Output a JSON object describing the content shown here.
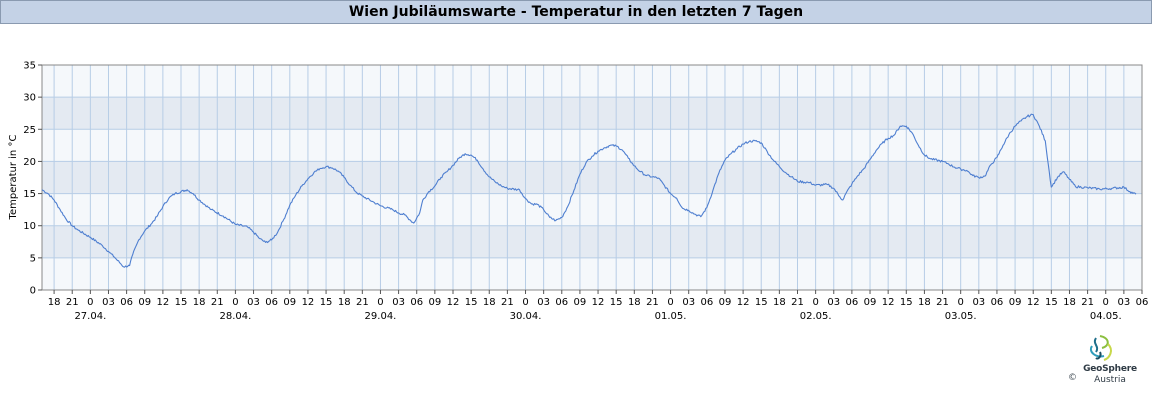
{
  "title": "Wien Jubiläumswarte - Temperatur in den letzten 7 Tagen",
  "colors": {
    "band_dark": "#e4eaf2",
    "band_light": "#f5f8fb",
    "grid": "#b7cde6",
    "line": "#4f7fd0",
    "title_bg": "#c4d2e6"
  },
  "logo": {
    "name": "GeoSphere",
    "sub": "Austria",
    "copyright": "©",
    "icon": "geosphere-logo-icon"
  },
  "chart_data": {
    "type": "line",
    "title": "Wien Jubiläumswarte - Temperatur in den letzten 7 Tagen",
    "xlabel": "",
    "ylabel": "Temperatur in °C",
    "ylim": [
      0,
      35
    ],
    "yticks": [
      0,
      5,
      10,
      15,
      20,
      25,
      30,
      35
    ],
    "xlim": [
      "2024-04-26 16:00",
      "2024-05-04 06:00"
    ],
    "x_unit": "date-time (hours)",
    "hour_tick_labels": [
      "18",
      "21",
      "0",
      "03",
      "06",
      "09",
      "12",
      "15",
      "18",
      "21",
      "0",
      "03",
      "06",
      "09",
      "12",
      "15",
      "18",
      "21",
      "0",
      "03",
      "06",
      "09",
      "12",
      "15",
      "18",
      "21",
      "0",
      "03",
      "06",
      "09",
      "12",
      "15",
      "18",
      "21",
      "0",
      "03",
      "06",
      "09",
      "12",
      "15",
      "18",
      "21",
      "0",
      "03",
      "06",
      "09",
      "12",
      "15",
      "18",
      "21",
      "0",
      "03",
      "06",
      "09",
      "12",
      "15",
      "18",
      "21",
      "0",
      "03",
      "06"
    ],
    "date_labels": [
      "27.04.",
      "28.04.",
      "29.04.",
      "30.04.",
      "01.05.",
      "02.05.",
      "03.05.",
      "04.05."
    ],
    "grid": true,
    "legend": "none",
    "series": [
      {
        "points": [
          [
            "26.04. 16:00",
            15.6
          ],
          [
            "26.04. 17:00",
            15.0
          ],
          [
            "26.04. 18:00",
            14.0
          ],
          [
            "26.04. 19:00",
            12.5
          ],
          [
            "26.04. 20:00",
            11.0
          ],
          [
            "26.04. 21:00",
            10.0
          ],
          [
            "26.04. 22:00",
            9.3
          ],
          [
            "27.04. 00:00",
            8.2
          ],
          [
            "27.04. 02:00",
            6.9
          ],
          [
            "27.04. 03:00",
            6.0
          ],
          [
            "27.04. 04:00",
            5.1
          ],
          [
            "27.04. 05:00",
            4.1
          ],
          [
            "27.04. 05:30",
            3.6
          ],
          [
            "27.04. 06:30",
            3.8
          ],
          [
            "27.04. 07:00",
            5.5
          ],
          [
            "27.04. 08:00",
            7.8
          ],
          [
            "27.04. 09:00",
            9.2
          ],
          [
            "27.04. 10:00",
            10.2
          ],
          [
            "27.04. 11:00",
            11.4
          ],
          [
            "27.04. 12:00",
            13.0
          ],
          [
            "27.04. 13:00",
            14.3
          ],
          [
            "27.04. 14:00",
            15.0
          ],
          [
            "27.04. 16:00",
            15.6
          ],
          [
            "27.04. 17:00",
            15.0
          ],
          [
            "27.04. 18:00",
            14.0
          ],
          [
            "27.04. 20:00",
            12.5
          ],
          [
            "27.04. 22:00",
            11.5
          ],
          [
            "28.04. 00:00",
            10.2
          ],
          [
            "28.04. 02:00",
            9.8
          ],
          [
            "28.04. 03:00",
            9.0
          ],
          [
            "28.04. 04:00",
            8.0
          ],
          [
            "28.04. 05:00",
            7.4
          ],
          [
            "28.04. 06:00",
            7.8
          ],
          [
            "28.04. 07:00",
            9.0
          ],
          [
            "28.04. 08:00",
            11.0
          ],
          [
            "28.04. 09:00",
            13.2
          ],
          [
            "28.04. 10:00",
            14.8
          ],
          [
            "28.04. 11:00",
            16.2
          ],
          [
            "28.04. 12:00",
            17.3
          ],
          [
            "28.04. 13:00",
            18.3
          ],
          [
            "28.04. 14:00",
            18.9
          ],
          [
            "28.04. 15:00",
            19.2
          ],
          [
            "28.04. 16:00",
            19.0
          ],
          [
            "28.04. 17:00",
            18.5
          ],
          [
            "28.04. 18:00",
            17.5
          ],
          [
            "28.04. 19:00",
            16.3
          ],
          [
            "28.04. 20:00",
            15.2
          ],
          [
            "28.04. 21:00",
            14.6
          ],
          [
            "28.04. 23:00",
            13.6
          ],
          [
            "29.04. 00:00",
            13.1
          ],
          [
            "29.04. 02:00",
            12.5
          ],
          [
            "29.04. 03:00",
            12.0
          ],
          [
            "29.04. 04:00",
            11.7
          ],
          [
            "29.04. 05:00",
            10.8
          ],
          [
            "29.04. 05:30",
            10.4
          ],
          [
            "29.04. 06:30",
            12.0
          ],
          [
            "29.04. 07:00",
            14.0
          ],
          [
            "29.04. 08:00",
            15.3
          ],
          [
            "29.04. 09:00",
            16.2
          ],
          [
            "29.04. 10:00",
            17.5
          ],
          [
            "29.04. 11:00",
            18.4
          ],
          [
            "29.04. 12:00",
            19.4
          ],
          [
            "29.04. 13:00",
            20.5
          ],
          [
            "29.04. 14:00",
            21.2
          ],
          [
            "29.04. 15:00",
            21.0
          ],
          [
            "29.04. 16:00",
            20.2
          ],
          [
            "29.04. 17:00",
            18.8
          ],
          [
            "29.04. 18:00",
            17.6
          ],
          [
            "29.04. 19:00",
            16.8
          ],
          [
            "29.04. 20:00",
            16.2
          ],
          [
            "29.04. 21:00",
            15.8
          ],
          [
            "29.04. 23:00",
            15.6
          ],
          [
            "30.04. 00:00",
            14.2
          ],
          [
            "30.04. 01:00",
            13.4
          ],
          [
            "30.04. 02:00",
            13.3
          ],
          [
            "30.04. 03:00",
            12.5
          ],
          [
            "30.04. 04:00",
            11.3
          ],
          [
            "30.04. 05:00",
            10.8
          ],
          [
            "30.04. 06:00",
            11.3
          ],
          [
            "30.04. 07:00",
            13.0
          ],
          [
            "30.04. 08:00",
            15.5
          ],
          [
            "30.04. 09:00",
            18.0
          ],
          [
            "30.04. 10:00",
            19.8
          ],
          [
            "30.04. 11:00",
            20.8
          ],
          [
            "30.04. 12:00",
            21.6
          ],
          [
            "30.04. 13:00",
            22.1
          ],
          [
            "30.04. 14:00",
            22.5
          ],
          [
            "30.04. 15:00",
            22.4
          ],
          [
            "30.04. 16:00",
            21.8
          ],
          [
            "30.04. 17:00",
            20.5
          ],
          [
            "30.04. 18:00",
            19.3
          ],
          [
            "30.04. 19:00",
            18.4
          ],
          [
            "30.04. 20:00",
            17.8
          ],
          [
            "30.04. 21:00",
            17.6
          ],
          [
            "30.04. 22:00",
            17.4
          ],
          [
            "01.05. 00:00",
            15.0
          ],
          [
            "01.05. 01:00",
            14.3
          ],
          [
            "01.05. 02:00",
            12.7
          ],
          [
            "01.05. 03:00",
            12.4
          ],
          [
            "01.05. 04:00",
            11.8
          ],
          [
            "01.05. 05:00",
            11.4
          ],
          [
            "01.05. 06:00",
            12.8
          ],
          [
            "01.05. 07:00",
            15.5
          ],
          [
            "01.05. 08:00",
            18.2
          ],
          [
            "01.05. 09:00",
            20.2
          ],
          [
            "01.05. 10:00",
            21.2
          ],
          [
            "01.05. 11:00",
            22.0
          ],
          [
            "01.05. 12:00",
            22.7
          ],
          [
            "01.05. 13:00",
            23.1
          ],
          [
            "01.05. 14:00",
            23.2
          ],
          [
            "01.05. 15:00",
            22.9
          ],
          [
            "01.05. 16:00",
            21.5
          ],
          [
            "01.05. 17:00",
            20.2
          ],
          [
            "01.05. 18:00",
            19.2
          ],
          [
            "01.05. 19:00",
            18.3
          ],
          [
            "01.05. 20:00",
            17.6
          ],
          [
            "01.05. 21:00",
            16.9
          ],
          [
            "01.05. 23:00",
            16.7
          ],
          [
            "02.05. 00:00",
            16.3
          ],
          [
            "02.05. 02:00",
            16.4
          ],
          [
            "02.05. 03:00",
            15.8
          ],
          [
            "02.05. 04:00",
            14.5
          ],
          [
            "02.05. 04:30",
            14.0
          ],
          [
            "02.05. 05:00",
            15.0
          ],
          [
            "02.05. 06:00",
            16.5
          ],
          [
            "02.05. 07:00",
            17.8
          ],
          [
            "02.05. 08:00",
            18.9
          ],
          [
            "02.05. 09:00",
            20.3
          ],
          [
            "02.05. 10:00",
            21.7
          ],
          [
            "02.05. 11:00",
            22.8
          ],
          [
            "02.05. 12:00",
            23.6
          ],
          [
            "02.05. 13:00",
            24.1
          ],
          [
            "02.05. 14:00",
            25.5
          ],
          [
            "02.05. 15:00",
            25.5
          ],
          [
            "02.05. 16:00",
            24.4
          ],
          [
            "02.05. 17:00",
            22.5
          ],
          [
            "02.05. 18:00",
            21.0
          ],
          [
            "02.05. 19:00",
            20.4
          ],
          [
            "02.05. 21:00",
            20.0
          ],
          [
            "02.05. 22:00",
            19.6
          ],
          [
            "02.05. 23:00",
            19.1
          ],
          [
            "03.05. 00:00",
            18.8
          ],
          [
            "03.05. 01:00",
            18.6
          ],
          [
            "03.05. 02:00",
            17.8
          ],
          [
            "03.05. 03:00",
            17.5
          ],
          [
            "03.05. 04:00",
            17.7
          ],
          [
            "03.05. 05:00",
            19.5
          ],
          [
            "03.05. 06:00",
            20.6
          ],
          [
            "03.05. 07:00",
            22.5
          ],
          [
            "03.05. 08:00",
            24.2
          ],
          [
            "03.05. 09:00",
            25.5
          ],
          [
            "03.05. 10:00",
            26.3
          ],
          [
            "03.05. 11:00",
            27.0
          ],
          [
            "03.05. 12:00",
            27.3
          ],
          [
            "03.05. 13:00",
            25.5
          ],
          [
            "03.05. 14:00",
            23.2
          ],
          [
            "03.05. 14:30",
            19.5
          ],
          [
            "03.05. 15:00",
            16.0
          ],
          [
            "03.05. 16:00",
            17.5
          ],
          [
            "03.05. 17:00",
            18.4
          ],
          [
            "03.05. 18:00",
            17.2
          ],
          [
            "03.05. 19:00",
            16.1
          ],
          [
            "03.05. 21:00",
            15.9
          ],
          [
            "03.05. 23:00",
            15.7
          ],
          [
            "04.05. 01:00",
            15.8
          ],
          [
            "04.05. 03:00",
            16.0
          ],
          [
            "04.05. 04:00",
            15.3
          ],
          [
            "04.05. 05:00",
            14.9
          ]
        ]
      }
    ]
  }
}
